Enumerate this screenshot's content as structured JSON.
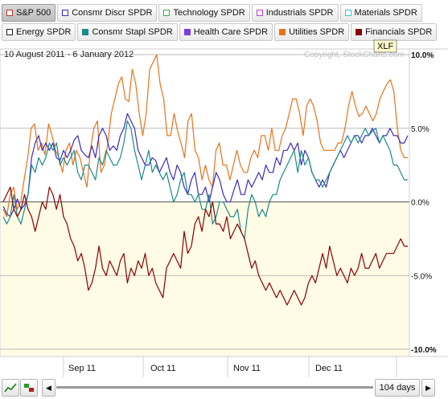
{
  "buttons_row1": [
    {
      "label": "S&P 500",
      "color": "#c0392b",
      "active": true
    },
    {
      "label": "Consmr Discr SPDR",
      "color": "#3b2bbd",
      "active": false
    },
    {
      "label": "Technology SPDR",
      "color": "#2bb24c",
      "active": false
    },
    {
      "label": "Industrials SPDR",
      "color": "#c23fc2",
      "active": false
    },
    {
      "label": "Materials SPDR",
      "color": "#35c9d6",
      "active": false
    }
  ],
  "buttons_row2": [
    {
      "label": "Energy SPDR",
      "color": "#222222",
      "active": false
    },
    {
      "label": "Consmr Stapl SPDR",
      "color": "#1a8a8a",
      "active": false
    },
    {
      "label": "Health Care SPDR",
      "color": "#7b3fe0",
      "active": false
    },
    {
      "label": "Utilities SPDR",
      "color": "#e8731a",
      "active": false
    },
    {
      "label": "Financials SPDR",
      "color": "#8b0000",
      "active": false
    }
  ],
  "chart_header": {
    "date_range": "10 August 2011 - 6 January 2012",
    "copyright": "Copyright, StockCharts.com",
    "tooltip": "XLF"
  },
  "bottom_bar": {
    "days_label": "104 days",
    "left_arrow": "◀",
    "right_arrow": "▶"
  },
  "chart_data": {
    "type": "line",
    "x_labels": [
      "Sep 11",
      "Oct 11",
      "Nov 11",
      "Dec 11"
    ],
    "ylim": [
      -10,
      10
    ],
    "y_ticks": [
      "10.0%",
      "5.0%",
      "0.0%",
      "-5.0%",
      "-10.0%"
    ],
    "series": [
      {
        "name": "Utilities SPDR",
        "color": "#e8731a",
        "values": [
          -0.5,
          -1.0,
          0.5,
          1.0,
          -0.5,
          0.0,
          1.5,
          3.0,
          5.0,
          5.3,
          3.5,
          4.0,
          3.2,
          5.3,
          4.5,
          3.5,
          3.0,
          2.0,
          3.5,
          4.0,
          2.5,
          3.5,
          3.0,
          2.0,
          1.0,
          3.5,
          5.0,
          5.5,
          2.0,
          2.5,
          4.0,
          6.0,
          7.0,
          8.0,
          8.5,
          7.0,
          6.8,
          9.0,
          8.0,
          6.0,
          4.5,
          6.0,
          9.0,
          9.5,
          10.0,
          8.0,
          7.0,
          4.5,
          4.5,
          6.0,
          4.8,
          4.0,
          3.0,
          5.5,
          6.0,
          3.5,
          3.0,
          1.5,
          2.5,
          1.5,
          1.0,
          3.5,
          4.0,
          2.5,
          2.5,
          1.5,
          2.5,
          3.5,
          2.5,
          2.0,
          2.0,
          3.0,
          3.5,
          3.0,
          4.5,
          4.5,
          3.5,
          5.0,
          3.5,
          3.5,
          4.5,
          5.0,
          6.0,
          7.0,
          7.0,
          6.0,
          4.5,
          6.5,
          7.0,
          6.5,
          5.5,
          4.0,
          3.5,
          3.5,
          3.5,
          3.5,
          4.0,
          4.0,
          5.0,
          6.5,
          7.5,
          6.5,
          5.8,
          6.0,
          6.5,
          6.0,
          5.5,
          6.0,
          7.0,
          7.5,
          8.0,
          8.3,
          7.5,
          5.0,
          3.5,
          3.0,
          3.0
        ]
      },
      {
        "name": "Consmr Discr SPDR",
        "color": "#3b2bbd",
        "values": [
          -0.3,
          -0.8,
          -1.0,
          -0.5,
          0.2,
          -0.5,
          -0.2,
          0.5,
          3.0,
          4.0,
          4.5,
          3.5,
          4.0,
          3.5,
          4.0,
          3.0,
          2.8,
          3.5,
          3.0,
          3.5,
          4.2,
          4.5,
          3.5,
          3.2,
          3.0,
          3.8,
          3.0,
          4.5,
          5.0,
          4.5,
          3.5,
          3.8,
          3.5,
          4.5,
          5.0,
          6.0,
          5.5,
          5.0,
          3.5,
          3.0,
          2.5,
          2.5,
          3.0,
          2.8,
          2.0,
          2.5,
          3.0,
          2.0,
          1.5,
          2.5,
          2.0,
          1.0,
          0.5,
          1.5,
          2.0,
          0.5,
          0.5,
          1.0,
          0.0,
          1.0,
          2.0,
          1.5,
          0.5,
          0.0,
          0.0,
          0.8,
          1.5,
          0.5,
          0.5,
          1.5,
          1.0,
          1.5,
          2.0,
          1.5,
          2.5,
          2.0,
          2.0,
          3.0,
          2.5,
          3.5,
          3.5,
          4.0,
          3.5,
          4.0,
          2.5,
          3.5,
          3.0,
          2.0,
          1.5,
          1.0,
          1.5,
          1.0,
          2.0,
          2.5,
          3.0,
          3.5,
          3.0,
          3.5,
          4.0,
          4.5,
          4.5,
          4.0,
          4.5,
          4.5,
          5.0,
          4.5,
          4.0,
          4.5,
          4.5,
          5.0,
          4.5,
          4.5,
          4.0,
          4.0,
          4.5
        ]
      },
      {
        "name": "Consmr Stapl SPDR",
        "color": "#1a8a8a",
        "values": [
          -1.0,
          -1.5,
          -1.0,
          0.5,
          -1.0,
          -1.5,
          -0.5,
          0.5,
          2.5,
          2.0,
          3.0,
          2.5,
          3.0,
          4.0,
          3.5,
          4.0,
          2.5,
          3.0,
          2.5,
          3.0,
          3.5,
          2.0,
          1.5,
          2.5,
          2.5,
          2.0,
          1.5,
          3.0,
          2.5,
          3.5,
          3.0,
          2.5,
          2.5,
          3.0,
          4.0,
          5.5,
          5.0,
          3.5,
          2.5,
          1.5,
          2.5,
          3.5,
          2.0,
          2.5,
          2.0,
          1.5,
          2.0,
          1.0,
          0.0,
          0.5,
          1.5,
          2.0,
          0.5,
          0.5,
          0.0,
          0.5,
          -0.5,
          -0.5,
          0.5,
          -1.5,
          -1.0,
          0.0,
          0.0,
          -0.5,
          -1.0,
          -1.0,
          -0.5,
          -2.0,
          -2.5,
          -0.5,
          0.5,
          0.0,
          -1.0,
          -0.5,
          -1.0,
          0.0,
          0.5,
          0.5,
          1.5,
          2.0,
          2.5,
          3.0,
          3.5,
          2.0,
          3.5,
          2.5,
          3.0,
          2.0,
          1.5,
          1.5,
          1.0,
          1.5,
          2.0,
          2.5,
          3.0,
          3.5,
          4.0,
          4.5,
          4.0,
          4.5,
          4.0,
          4.5,
          5.0,
          4.5,
          4.8,
          5.0,
          4.0,
          4.5,
          4.0,
          3.5,
          2.5,
          2.5,
          2.0,
          1.5,
          1.5
        ]
      },
      {
        "name": "Financials SPDR",
        "color": "#8b0000",
        "values": [
          0.0,
          0.5,
          1.0,
          -0.5,
          -1.0,
          -0.5,
          0.5,
          -0.5,
          -1.0,
          -2.0,
          -1.0,
          0.0,
          -0.5,
          1.0,
          0.5,
          -0.5,
          0.5,
          -1.0,
          -1.5,
          -2.5,
          -3.0,
          -4.0,
          -3.5,
          -4.5,
          -6.0,
          -5.5,
          -4.5,
          -3.0,
          -4.5,
          -5.0,
          -4.0,
          -4.5,
          -5.0,
          -4.0,
          -3.5,
          -5.5,
          -4.5,
          -5.0,
          -4.0,
          -4.5,
          -3.5,
          -5.0,
          -4.5,
          -5.5,
          -6.0,
          -6.5,
          -4.5,
          -4.0,
          -3.5,
          -4.0,
          -4.5,
          -2.0,
          -3.5,
          -3.0,
          -1.5,
          -1.0,
          -2.0,
          -0.5,
          -1.0,
          0.0,
          -1.5,
          -1.5,
          -2.0,
          -1.0,
          -2.5,
          -2.0,
          -1.5,
          -2.0,
          -2.5,
          -3.5,
          -4.5,
          -4.0,
          -5.0,
          -5.5,
          -6.0,
          -5.5,
          -6.0,
          -6.5,
          -6.0,
          -6.5,
          -7.0,
          -6.5,
          -6.0,
          -6.5,
          -7.0,
          -6.5,
          -5.5,
          -5.0,
          -5.5,
          -4.5,
          -3.5,
          -4.5,
          -3.0,
          -4.0,
          -5.0,
          -4.5,
          -5.0,
          -5.5,
          -4.5,
          -5.0,
          -4.5,
          -3.5,
          -4.5,
          -4.5,
          -4.0,
          -3.5,
          -4.5,
          -4.0,
          -3.5,
          -3.5,
          -3.5,
          -3.0,
          -2.5,
          -3.0,
          -3.0
        ]
      }
    ]
  }
}
